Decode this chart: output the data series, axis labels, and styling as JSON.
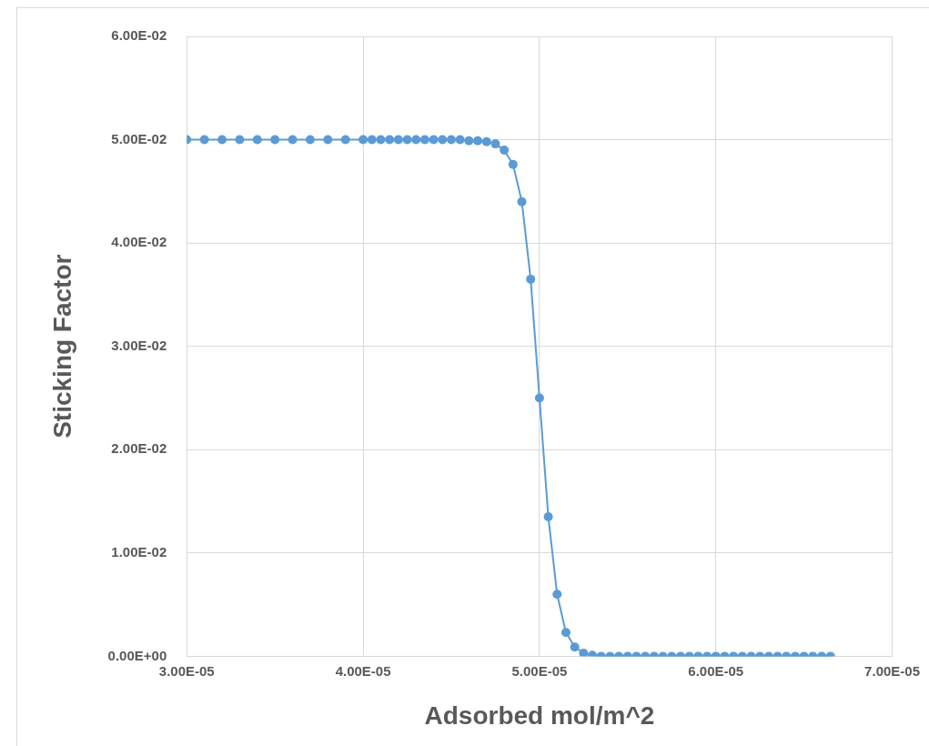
{
  "chart_data": {
    "type": "line",
    "xlabel": "Adsorbed mol/m^2",
    "ylabel": "Sticking Factor",
    "x": [
      3e-05,
      3.1e-05,
      3.2e-05,
      3.3e-05,
      3.4e-05,
      3.5e-05,
      3.6e-05,
      3.7e-05,
      3.8e-05,
      3.9e-05,
      4e-05,
      4.05e-05,
      4.1e-05,
      4.15e-05,
      4.2e-05,
      4.25e-05,
      4.3e-05,
      4.35e-05,
      4.4e-05,
      4.45e-05,
      4.5e-05,
      4.55e-05,
      4.6e-05,
      4.65e-05,
      4.7e-05,
      4.75e-05,
      4.8e-05,
      4.85e-05,
      4.9e-05,
      4.95e-05,
      5e-05,
      5.05e-05,
      5.1e-05,
      5.15e-05,
      5.2e-05,
      5.25e-05,
      5.3e-05,
      5.35e-05,
      5.4e-05,
      5.45e-05,
      5.5e-05,
      5.55e-05,
      5.6e-05,
      5.65e-05,
      5.7e-05,
      5.75e-05,
      5.8e-05,
      5.85e-05,
      5.9e-05,
      5.95e-05,
      6e-05,
      6.05e-05,
      6.1e-05,
      6.15e-05,
      6.2e-05,
      6.25e-05,
      6.3e-05,
      6.35e-05,
      6.4e-05,
      6.45e-05,
      6.5e-05,
      6.55e-05,
      6.6e-05,
      6.65e-05
    ],
    "series": [
      {
        "color": "#5b9bd5",
        "values": [
          0.05,
          0.05,
          0.05,
          0.05,
          0.05,
          0.05,
          0.05,
          0.05,
          0.05,
          0.05,
          0.05,
          0.05,
          0.05,
          0.05,
          0.05,
          0.05,
          0.05,
          0.05,
          0.05,
          0.05,
          0.05,
          0.05,
          0.0499,
          0.0499,
          0.0498,
          0.0496,
          0.049,
          0.0476,
          0.044,
          0.0365,
          0.025,
          0.0135,
          0.006,
          0.0023,
          0.0009,
          0.0003,
          0.0001,
          0,
          0,
          0,
          0,
          0,
          0,
          0,
          0,
          0,
          0,
          0,
          0,
          0,
          0,
          0,
          0,
          0,
          0,
          0,
          0,
          0,
          0,
          0,
          0,
          0,
          0,
          0
        ]
      }
    ],
    "xlim": [
      3e-05,
      7e-05
    ],
    "xticks": [
      {
        "value": 3e-05,
        "label": "3.00E-05"
      },
      {
        "value": 4e-05,
        "label": "4.00E-05"
      },
      {
        "value": 5e-05,
        "label": "5.00E-05"
      },
      {
        "value": 6e-05,
        "label": "6.00E-05"
      },
      {
        "value": 7e-05,
        "label": "7.00E-05"
      }
    ],
    "ylim": [
      0,
      0.06
    ],
    "yticks": [
      {
        "value": 0,
        "label": "0.00E+00"
      },
      {
        "value": 0.01,
        "label": "1.00E-02"
      },
      {
        "value": 0.02,
        "label": "2.00E-02"
      },
      {
        "value": 0.03,
        "label": "3.00E-02"
      },
      {
        "value": 0.04,
        "label": "4.00E-02"
      },
      {
        "value": 0.05,
        "label": "5.00E-02"
      },
      {
        "value": 0.06,
        "label": "6.00E-02"
      }
    ],
    "grid": true,
    "marker": "circle",
    "line_style": "solid"
  }
}
